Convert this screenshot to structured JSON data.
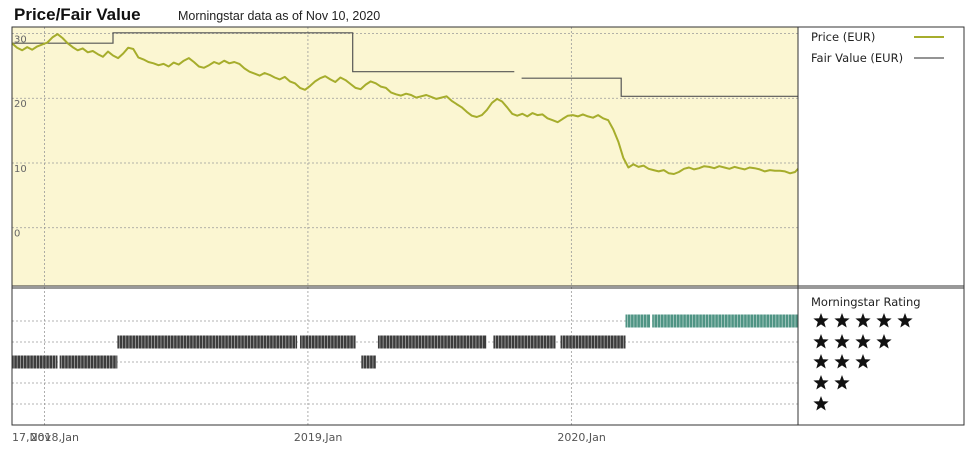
{
  "title": "Price/Fair Value",
  "subtitle": "Morningstar data as of Nov 10, 2020",
  "colors": {
    "plot_bg": "#fbf6d2",
    "price_line": "#a6ad2c",
    "fair_value_line": "#555555",
    "rating_black": "#3c3c3c",
    "rating_teal": "#4f9484",
    "grid": "#9a9a9a"
  },
  "chart_data": [
    {
      "type": "line",
      "title": "Price/Fair Value",
      "x_ticks": [
        {
          "date": "2017-11-17",
          "label": "17,Nov"
        },
        {
          "date": "2018-01-01",
          "label": "2018,Jan"
        },
        {
          "date": "2019-01-01",
          "label": "2019,Jan"
        },
        {
          "date": "2020-01-01",
          "label": "2020,Jan"
        }
      ],
      "y_ticks": [
        0,
        10,
        20,
        30
      ],
      "xlim": [
        "2017-11-17",
        "2020-11-10"
      ],
      "ylim": [
        -9,
        31
      ],
      "grid": true,
      "legend_position": "right",
      "series": [
        {
          "name": "Price (EUR)",
          "color": "#a6ad2c",
          "points": [
            [
              "2017-11-17",
              28.5
            ],
            [
              "2017-11-24",
              27.8
            ],
            [
              "2017-12-01",
              27.4
            ],
            [
              "2017-12-08",
              27.9
            ],
            [
              "2017-12-15",
              27.5
            ],
            [
              "2017-12-22",
              28.0
            ],
            [
              "2017-12-29",
              28.3
            ],
            [
              "2018-01-05",
              28.6
            ],
            [
              "2018-01-12",
              29.4
            ],
            [
              "2018-01-19",
              29.9
            ],
            [
              "2018-01-26",
              29.3
            ],
            [
              "2018-02-02",
              28.5
            ],
            [
              "2018-02-09",
              27.9
            ],
            [
              "2018-02-16",
              27.4
            ],
            [
              "2018-02-23",
              27.7
            ],
            [
              "2018-03-02",
              27.1
            ],
            [
              "2018-03-09",
              27.3
            ],
            [
              "2018-03-16",
              26.8
            ],
            [
              "2018-03-23",
              26.4
            ],
            [
              "2018-03-30",
              27.2
            ],
            [
              "2018-04-06",
              26.6
            ],
            [
              "2018-04-13",
              26.2
            ],
            [
              "2018-04-20",
              26.9
            ],
            [
              "2018-04-27",
              27.8
            ],
            [
              "2018-05-04",
              27.6
            ],
            [
              "2018-05-11",
              26.3
            ],
            [
              "2018-05-18",
              26.0
            ],
            [
              "2018-05-25",
              25.6
            ],
            [
              "2018-06-01",
              25.4
            ],
            [
              "2018-06-08",
              25.1
            ],
            [
              "2018-06-15",
              25.3
            ],
            [
              "2018-06-22",
              24.9
            ],
            [
              "2018-06-29",
              25.5
            ],
            [
              "2018-07-06",
              25.2
            ],
            [
              "2018-07-13",
              25.8
            ],
            [
              "2018-07-20",
              26.2
            ],
            [
              "2018-07-27",
              25.6
            ],
            [
              "2018-08-03",
              24.9
            ],
            [
              "2018-08-10",
              24.7
            ],
            [
              "2018-08-17",
              25.1
            ],
            [
              "2018-08-24",
              25.6
            ],
            [
              "2018-08-31",
              25.3
            ],
            [
              "2018-09-07",
              25.8
            ],
            [
              "2018-09-14",
              25.4
            ],
            [
              "2018-09-21",
              25.6
            ],
            [
              "2018-09-28",
              25.3
            ],
            [
              "2018-10-05",
              24.6
            ],
            [
              "2018-10-12",
              24.1
            ],
            [
              "2018-10-19",
              23.8
            ],
            [
              "2018-10-26",
              23.5
            ],
            [
              "2018-11-02",
              23.9
            ],
            [
              "2018-11-09",
              23.6
            ],
            [
              "2018-11-16",
              23.2
            ],
            [
              "2018-11-23",
              22.9
            ],
            [
              "2018-11-30",
              23.3
            ],
            [
              "2018-12-07",
              22.6
            ],
            [
              "2018-12-14",
              22.3
            ],
            [
              "2018-12-21",
              21.6
            ],
            [
              "2018-12-28",
              21.3
            ],
            [
              "2019-01-04",
              21.9
            ],
            [
              "2019-01-11",
              22.6
            ],
            [
              "2019-01-18",
              23.1
            ],
            [
              "2019-01-25",
              23.4
            ],
            [
              "2019-02-01",
              22.9
            ],
            [
              "2019-02-08",
              22.5
            ],
            [
              "2019-02-15",
              23.2
            ],
            [
              "2019-02-22",
              22.8
            ],
            [
              "2019-03-01",
              22.2
            ],
            [
              "2019-03-08",
              21.6
            ],
            [
              "2019-03-15",
              21.4
            ],
            [
              "2019-03-22",
              22.1
            ],
            [
              "2019-03-29",
              22.6
            ],
            [
              "2019-04-05",
              22.3
            ],
            [
              "2019-04-12",
              21.8
            ],
            [
              "2019-04-19",
              21.6
            ],
            [
              "2019-04-26",
              20.9
            ],
            [
              "2019-05-03",
              20.6
            ],
            [
              "2019-05-10",
              20.4
            ],
            [
              "2019-05-17",
              20.7
            ],
            [
              "2019-05-24",
              20.5
            ],
            [
              "2019-05-31",
              20.1
            ],
            [
              "2019-06-07",
              20.3
            ],
            [
              "2019-06-14",
              20.5
            ],
            [
              "2019-06-21",
              20.2
            ],
            [
              "2019-06-28",
              19.9
            ],
            [
              "2019-07-05",
              20.1
            ],
            [
              "2019-07-12",
              20.3
            ],
            [
              "2019-07-19",
              19.6
            ],
            [
              "2019-07-26",
              19.1
            ],
            [
              "2019-08-02",
              18.6
            ],
            [
              "2019-08-09",
              17.9
            ],
            [
              "2019-08-16",
              17.3
            ],
            [
              "2019-08-23",
              17.1
            ],
            [
              "2019-08-30",
              17.4
            ],
            [
              "2019-09-06",
              18.2
            ],
            [
              "2019-09-13",
              19.3
            ],
            [
              "2019-09-20",
              19.9
            ],
            [
              "2019-09-27",
              19.5
            ],
            [
              "2019-10-04",
              18.6
            ],
            [
              "2019-10-11",
              17.6
            ],
            [
              "2019-10-18",
              17.3
            ],
            [
              "2019-10-25",
              17.6
            ],
            [
              "2019-11-01",
              17.2
            ],
            [
              "2019-11-08",
              17.7
            ],
            [
              "2019-11-15",
              17.4
            ],
            [
              "2019-11-22",
              17.5
            ],
            [
              "2019-11-29",
              16.9
            ],
            [
              "2019-12-06",
              16.6
            ],
            [
              "2019-12-13",
              16.3
            ],
            [
              "2019-12-20",
              16.8
            ],
            [
              "2019-12-27",
              17.3
            ],
            [
              "2020-01-03",
              17.4
            ],
            [
              "2020-01-10",
              17.2
            ],
            [
              "2020-01-17",
              17.5
            ],
            [
              "2020-01-24",
              17.2
            ],
            [
              "2020-01-31",
              17.0
            ],
            [
              "2020-02-07",
              17.4
            ],
            [
              "2020-02-14",
              16.9
            ],
            [
              "2020-02-21",
              16.6
            ],
            [
              "2020-02-28",
              15.2
            ],
            [
              "2020-03-06",
              13.3
            ],
            [
              "2020-03-13",
              10.8
            ],
            [
              "2020-03-20",
              9.3
            ],
            [
              "2020-03-27",
              9.8
            ],
            [
              "2020-04-03",
              9.4
            ],
            [
              "2020-04-10",
              9.6
            ],
            [
              "2020-04-17",
              9.1
            ],
            [
              "2020-04-24",
              8.9
            ],
            [
              "2020-05-01",
              8.7
            ],
            [
              "2020-05-08",
              8.9
            ],
            [
              "2020-05-15",
              8.4
            ],
            [
              "2020-05-22",
              8.3
            ],
            [
              "2020-05-29",
              8.6
            ],
            [
              "2020-06-05",
              9.1
            ],
            [
              "2020-06-12",
              9.3
            ],
            [
              "2020-06-19",
              9.0
            ],
            [
              "2020-06-26",
              9.2
            ],
            [
              "2020-07-03",
              9.5
            ],
            [
              "2020-07-10",
              9.4
            ],
            [
              "2020-07-17",
              9.2
            ],
            [
              "2020-07-24",
              9.5
            ],
            [
              "2020-07-31",
              9.3
            ],
            [
              "2020-08-07",
              9.1
            ],
            [
              "2020-08-14",
              9.4
            ],
            [
              "2020-08-21",
              9.2
            ],
            [
              "2020-08-28",
              9.0
            ],
            [
              "2020-09-04",
              9.3
            ],
            [
              "2020-09-11",
              9.2
            ],
            [
              "2020-09-18",
              9.0
            ],
            [
              "2020-09-25",
              8.7
            ],
            [
              "2020-10-02",
              8.9
            ],
            [
              "2020-10-09",
              8.8
            ],
            [
              "2020-10-16",
              8.8
            ],
            [
              "2020-10-23",
              8.7
            ],
            [
              "2020-10-30",
              8.4
            ],
            [
              "2020-11-06",
              8.6
            ],
            [
              "2020-11-10",
              9.1
            ]
          ]
        },
        {
          "name": "Fair Value (EUR)",
          "color": "#555555",
          "segments": [
            [
              [
                "2017-11-17",
                28.5
              ],
              [
                "2018-04-06",
                28.5
              ],
              [
                "2018-04-06",
                30.1
              ],
              [
                "2019-03-04",
                30.1
              ],
              [
                "2019-03-04",
                24.1
              ],
              [
                "2019-10-14",
                24.1
              ]
            ],
            [
              [
                "2019-10-24",
                23.1
              ],
              [
                "2020-03-10",
                23.1
              ],
              [
                "2020-03-10",
                20.3
              ],
              [
                "2020-11-10",
                20.3
              ]
            ]
          ]
        }
      ]
    },
    {
      "type": "rating_timeline",
      "title": "Morningstar Rating",
      "levels": [
        5,
        4,
        3,
        2,
        1
      ],
      "segments": [
        {
          "start": "2017-11-17",
          "end": "2018-01-19",
          "stars": 3,
          "color": "#3c3c3c"
        },
        {
          "start": "2018-01-22",
          "end": "2018-04-12",
          "stars": 3,
          "color": "#3c3c3c"
        },
        {
          "start": "2018-04-12",
          "end": "2018-12-17",
          "stars": 4,
          "color": "#3c3c3c"
        },
        {
          "start": "2018-12-21",
          "end": "2019-03-08",
          "stars": 4,
          "color": "#3c3c3c"
        },
        {
          "start": "2019-03-16",
          "end": "2019-04-05",
          "stars": 3,
          "color": "#3c3c3c"
        },
        {
          "start": "2019-04-08",
          "end": "2019-09-05",
          "stars": 4,
          "color": "#3c3c3c"
        },
        {
          "start": "2019-09-15",
          "end": "2019-12-10",
          "stars": 4,
          "color": "#3c3c3c"
        },
        {
          "start": "2019-12-17",
          "end": "2020-03-16",
          "stars": 4,
          "color": "#3c3c3c"
        },
        {
          "start": "2020-03-16",
          "end": "2020-04-19",
          "stars": 5,
          "color": "#4f9484"
        },
        {
          "start": "2020-04-22",
          "end": "2020-11-10",
          "stars": 5,
          "color": "#4f9484"
        }
      ]
    }
  ]
}
